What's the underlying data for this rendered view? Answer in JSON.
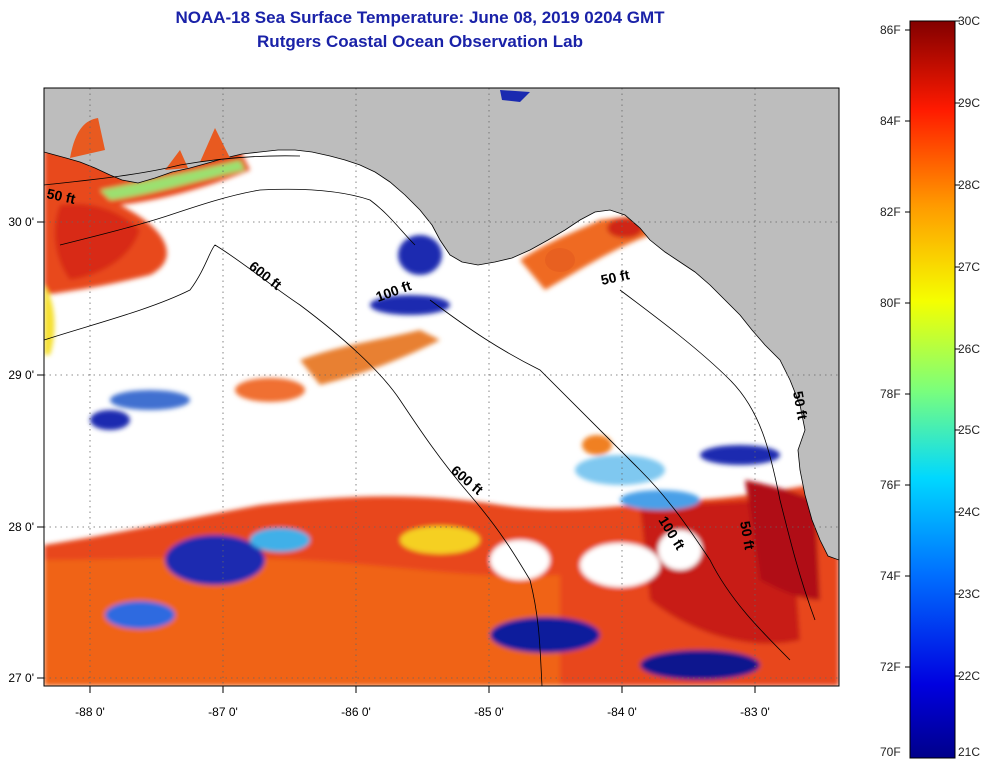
{
  "title": "NOAA-18 Sea Surface Temperature:  June 08, 2019 0204 GMT",
  "subtitle": "Rutgers Coastal Ocean Observation Lab",
  "map": {
    "lon_range": [
      -88.3,
      -82.5
    ],
    "lat_range": [
      26.95,
      30.85
    ],
    "lon_ticks": [
      "-88 0'",
      "-87 0'",
      "-86 0'",
      "-85 0'",
      "-84 0'",
      "-83 0'"
    ],
    "lat_ticks": [
      "27 0'",
      "28 0'",
      "29 0'",
      "30 0'"
    ],
    "contour_labels": [
      "50 ft",
      "600 ft",
      "100 ft",
      "600 ft",
      "100 ft",
      "50 ft",
      "50 ft",
      "50 ft"
    ],
    "colors": {
      "land": "#bdbdbd",
      "cloud": "#ffffff",
      "cold": "#0a1a9a",
      "warm": "#e23a12",
      "hot": "#b5101a"
    }
  },
  "colorbar": {
    "fahrenheit": [
      "86F",
      "84F",
      "82F",
      "80F",
      "78F",
      "76F",
      "74F",
      "72F",
      "70F"
    ],
    "celsius": [
      "30C",
      "29C",
      "28C",
      "27C",
      "26C",
      "25C",
      "24C",
      "23C",
      "22C",
      "21C"
    ]
  }
}
